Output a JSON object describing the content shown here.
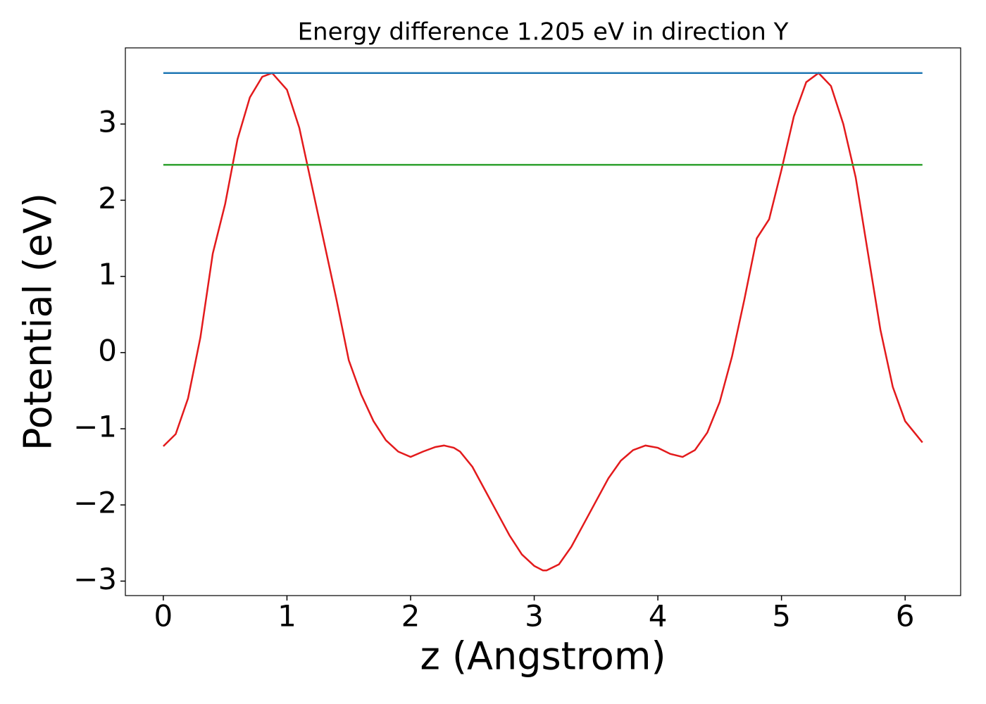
{
  "chart_data": {
    "type": "line",
    "title": "Energy difference 1.205 eV in direction Y",
    "xlabel": "z (Angstrom)",
    "ylabel": "Potential (eV)",
    "xlim": [
      -0.307,
      6.449
    ],
    "ylim": [
      -3.19,
      4.0
    ],
    "xticks": [
      0,
      1,
      2,
      3,
      4,
      5,
      6
    ],
    "yticks": [
      {
        "value": -3,
        "label": "−3"
      },
      {
        "value": -2,
        "label": "−2"
      },
      {
        "value": -1,
        "label": "−1"
      },
      0,
      1,
      2,
      3
    ],
    "grid": false,
    "series": [
      {
        "color": "#e31a1c",
        "x": [
          0,
          0.1,
          0.2,
          0.3,
          0.4,
          0.5,
          0.6,
          0.7,
          0.8,
          0.88,
          1.0,
          1.1,
          1.2,
          1.3,
          1.4,
          1.5,
          1.6,
          1.7,
          1.8,
          1.9,
          2.0,
          2.1,
          2.2,
          2.27,
          2.35,
          2.4,
          2.5,
          2.6,
          2.7,
          2.8,
          2.9,
          3.0,
          3.07,
          3.1,
          3.2,
          3.3,
          3.4,
          3.5,
          3.6,
          3.7,
          3.8,
          3.9,
          4.0,
          4.1,
          4.2,
          4.3,
          4.4,
          4.5,
          4.6,
          4.7,
          4.8,
          4.9,
          5.0,
          5.1,
          5.2,
          5.3,
          5.4,
          5.5,
          5.6,
          5.7,
          5.8,
          5.9,
          6.0,
          6.1,
          6.14
        ],
        "values": [
          -1.23,
          -1.07,
          -0.6,
          0.2,
          1.3,
          1.95,
          2.8,
          3.35,
          3.62,
          3.67,
          3.45,
          2.95,
          2.2,
          1.45,
          0.7,
          -0.1,
          -0.55,
          -0.9,
          -1.15,
          -1.3,
          -1.37,
          -1.3,
          -1.24,
          -1.22,
          -1.25,
          -1.3,
          -1.5,
          -1.8,
          -2.1,
          -2.4,
          -2.65,
          -2.8,
          -2.86,
          -2.86,
          -2.78,
          -2.55,
          -2.25,
          -1.95,
          -1.65,
          -1.42,
          -1.28,
          -1.22,
          -1.25,
          -1.33,
          -1.37,
          -1.28,
          -1.05,
          -0.65,
          -0.05,
          0.7,
          1.5,
          1.75,
          2.4,
          3.1,
          3.55,
          3.67,
          3.5,
          3.0,
          2.3,
          1.3,
          0.3,
          -0.45,
          -0.9,
          -1.1,
          -1.18
        ]
      },
      {
        "color": "#1f77b4",
        "x": [
          0,
          6.14
        ],
        "values": [
          3.67,
          3.67
        ]
      },
      {
        "color": "#2ca02c",
        "x": [
          0,
          6.14
        ],
        "values": [
          2.465,
          2.465
        ]
      }
    ]
  }
}
